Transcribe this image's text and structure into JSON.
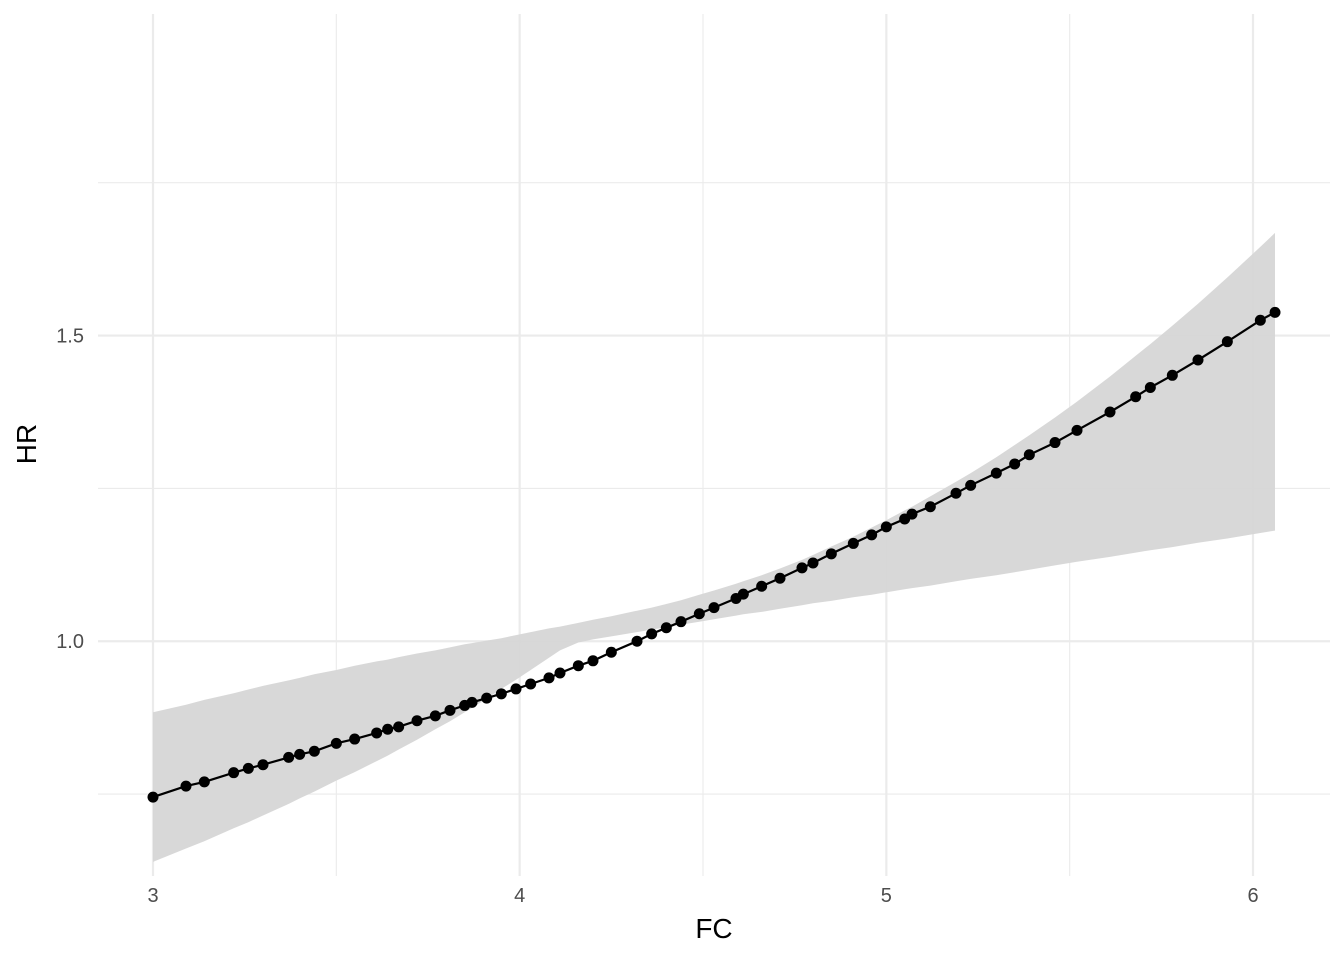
{
  "chart_data": {
    "type": "line",
    "title": "",
    "xlabel": "FC",
    "ylabel": "HR",
    "xlim": [
      2.85,
      6.21
    ],
    "ylim": [
      0.616,
      2.026
    ],
    "x_ticks": [
      3,
      4,
      5,
      6
    ],
    "x_tick_labels": [
      "3",
      "4",
      "5",
      "6"
    ],
    "x_minor_ticks": [
      3.5,
      4.5,
      5.5
    ],
    "y_ticks": [
      1.0,
      1.5
    ],
    "y_tick_labels": [
      "1.0",
      "1.5"
    ],
    "y_minor_ticks": [
      0.75,
      1.25,
      1.75
    ],
    "grid": true,
    "legend": "none",
    "colors": {
      "line": "#000000",
      "points": "#000000",
      "ribbon": "#d6d6d6",
      "grid": "#ebebeb"
    },
    "series": [
      {
        "x": [
          3.0,
          3.09,
          3.14,
          3.22,
          3.26,
          3.3,
          3.37,
          3.4,
          3.44,
          3.5,
          3.55,
          3.61,
          3.64,
          3.67,
          3.72,
          3.77,
          3.81,
          3.85,
          3.87,
          3.91,
          3.95,
          3.99,
          4.03,
          4.08,
          4.11,
          4.16,
          4.2,
          4.25,
          4.32,
          4.36,
          4.4,
          4.44,
          4.49,
          4.53,
          4.59,
          4.61,
          4.66,
          4.71,
          4.77,
          4.8,
          4.85,
          4.91,
          4.96,
          5.0,
          5.05,
          5.07,
          5.12,
          5.19,
          5.23,
          5.3,
          5.35,
          5.39,
          5.46,
          5.52,
          5.61,
          5.68,
          5.72,
          5.78,
          5.85,
          5.93,
          6.02,
          6.06
        ],
        "y": [
          0.745,
          0.763,
          0.77,
          0.785,
          0.792,
          0.798,
          0.81,
          0.815,
          0.82,
          0.833,
          0.84,
          0.85,
          0.856,
          0.86,
          0.87,
          0.878,
          0.887,
          0.895,
          0.9,
          0.907,
          0.914,
          0.922,
          0.93,
          0.94,
          0.948,
          0.96,
          0.968,
          0.982,
          1.0,
          1.012,
          1.022,
          1.032,
          1.045,
          1.055,
          1.07,
          1.077,
          1.09,
          1.103,
          1.12,
          1.128,
          1.143,
          1.16,
          1.174,
          1.187,
          1.2,
          1.208,
          1.22,
          1.242,
          1.255,
          1.275,
          1.29,
          1.305,
          1.325,
          1.345,
          1.375,
          1.4,
          1.415,
          1.435,
          1.46,
          1.49,
          1.525,
          1.538
        ],
        "upper": [
          0.884,
          0.896,
          0.904,
          0.915,
          0.921,
          0.927,
          0.936,
          0.94,
          0.946,
          0.953,
          0.96,
          0.967,
          0.97,
          0.974,
          0.98,
          0.985,
          0.99,
          0.995,
          0.997,
          1.001,
          1.005,
          1.01,
          1.015,
          1.021,
          1.024,
          1.03,
          1.035,
          1.041,
          1.05,
          1.055,
          1.061,
          1.067,
          1.076,
          1.083,
          1.094,
          1.098,
          1.108,
          1.119,
          1.133,
          1.141,
          1.155,
          1.171,
          1.186,
          1.198,
          1.214,
          1.22,
          1.237,
          1.261,
          1.275,
          1.301,
          1.321,
          1.337,
          1.366,
          1.392,
          1.433,
          1.467,
          1.486,
          1.516,
          1.552,
          1.595,
          1.645,
          1.668
        ],
        "lower": [
          0.639,
          0.661,
          0.673,
          0.694,
          0.704,
          0.715,
          0.734,
          0.743,
          0.754,
          0.772,
          0.786,
          0.804,
          0.813,
          0.823,
          0.839,
          0.856,
          0.869,
          0.884,
          0.891,
          0.906,
          0.922,
          0.937,
          0.953,
          0.973,
          0.985,
          0.998,
          1.003,
          1.008,
          1.015,
          1.019,
          1.023,
          1.027,
          1.032,
          1.036,
          1.042,
          1.044,
          1.048,
          1.053,
          1.059,
          1.062,
          1.066,
          1.072,
          1.076,
          1.08,
          1.085,
          1.087,
          1.091,
          1.098,
          1.102,
          1.108,
          1.113,
          1.117,
          1.124,
          1.13,
          1.138,
          1.145,
          1.149,
          1.154,
          1.161,
          1.168,
          1.177,
          1.181
        ]
      }
    ]
  }
}
